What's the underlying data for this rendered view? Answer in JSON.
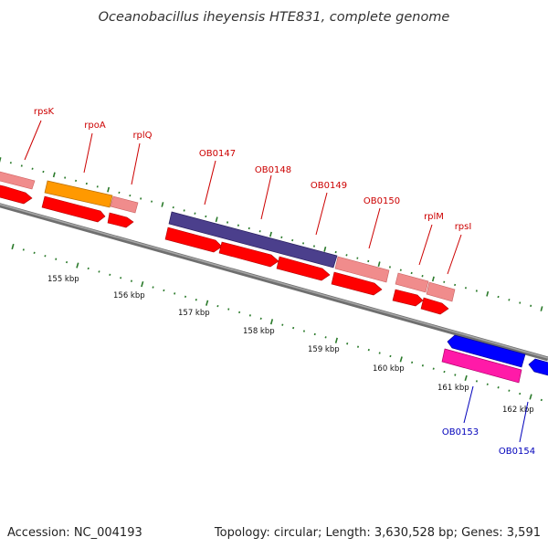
{
  "title": "Oceanobacillus iheyensis HTE831, complete genome",
  "footer": {
    "accession": "Accession: NC_004193",
    "summary": "Topology: circular; Length: 3,630,528 bp; Genes: 3,591"
  },
  "colors": {
    "label_red": "#cc0000",
    "label_blue": "#0000bb",
    "backbone": "#808080",
    "tick_green": "#2a7a2a",
    "gene_pink": "#f08c8c",
    "gene_orange": "#ff9900",
    "gene_purple": "#4b3f8c",
    "gene_red": "#ff0000",
    "gene_blue": "#0000ff",
    "gene_magenta": "#ff1aa8"
  },
  "scale": {
    "unit": "kbp",
    "labels": [
      "155 kbp",
      "156 kbp",
      "157 kbp",
      "158 kbp",
      "159 kbp",
      "160 kbp",
      "161 kbp",
      "162 kbp"
    ]
  },
  "gene_labels": [
    {
      "text": "rpsK",
      "color": "red"
    },
    {
      "text": "rpoA",
      "color": "red"
    },
    {
      "text": "rplQ",
      "color": "red"
    },
    {
      "text": "OB0147",
      "color": "red"
    },
    {
      "text": "OB0148",
      "color": "red"
    },
    {
      "text": "OB0149",
      "color": "red"
    },
    {
      "text": "OB0150",
      "color": "red"
    },
    {
      "text": "rplM",
      "color": "red"
    },
    {
      "text": "rpsI",
      "color": "red"
    },
    {
      "text": "OB0153",
      "color": "blue"
    },
    {
      "text": "OB0154",
      "color": "blue"
    }
  ]
}
